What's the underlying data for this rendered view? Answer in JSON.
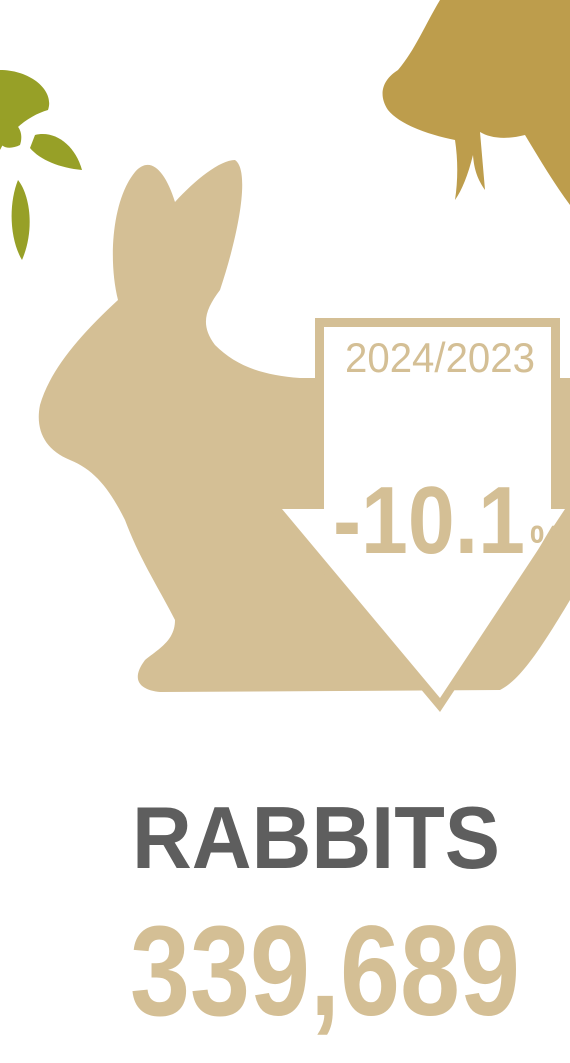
{
  "period": "2024/2023",
  "change": "-10.1",
  "change_unit": "%",
  "label": "RABBITS",
  "count": "339,689"
}
